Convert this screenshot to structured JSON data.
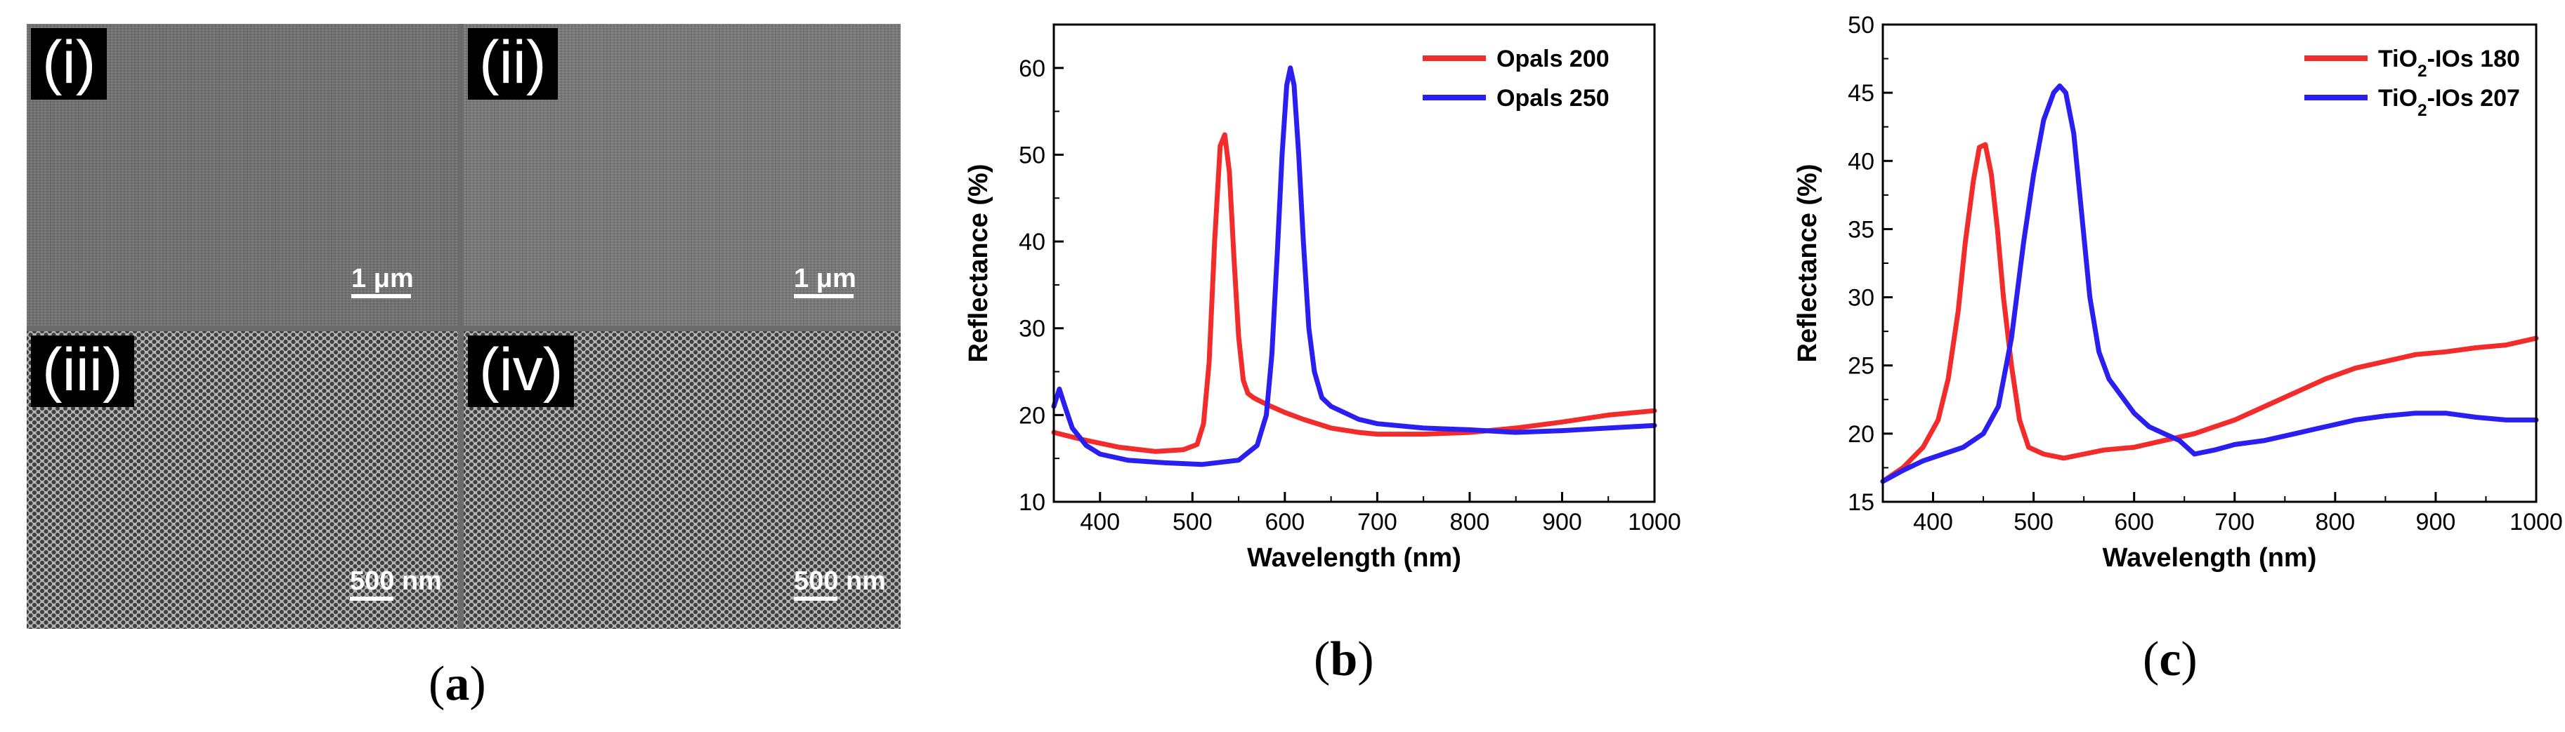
{
  "panel_a": {
    "caption_letter": "a",
    "images": [
      {
        "tag": "(i)",
        "scale_label": "1 μm",
        "texture": "smooth"
      },
      {
        "tag": "(ii)",
        "scale_label": "1 μm",
        "texture": "smooth"
      },
      {
        "tag": "(iii)",
        "scale_label": "500 nm",
        "texture": "porous"
      },
      {
        "tag": "(iv)",
        "scale_label": "500 nm",
        "texture": "porous"
      }
    ]
  },
  "panel_b": {
    "caption_letter": "b"
  },
  "panel_c": {
    "caption_letter": "c"
  },
  "colors": {
    "red": "#f22b2b",
    "blue": "#2a1ff0"
  },
  "chart_data": [
    {
      "id": "b",
      "type": "line",
      "title": "",
      "xlabel": "Wavelength (nm)",
      "ylabel": "Reflectance (%)",
      "xlim": [
        350,
        1000
      ],
      "ylim": [
        10,
        65
      ],
      "xticks": [
        400,
        500,
        600,
        700,
        800,
        900,
        1000
      ],
      "yticks": [
        10,
        20,
        30,
        40,
        50,
        60
      ],
      "legend_position": "top-right",
      "series": [
        {
          "name": "Opals 200",
          "color": "#f22b2b",
          "x": [
            350,
            380,
            420,
            460,
            490,
            505,
            512,
            518,
            524,
            530,
            535,
            540,
            545,
            550,
            555,
            560,
            566,
            575,
            585,
            600,
            620,
            650,
            680,
            700,
            750,
            800,
            850,
            900,
            950,
            1000
          ],
          "y": [
            18,
            17.2,
            16.3,
            15.8,
            16,
            16.6,
            19,
            26,
            40,
            51,
            52.3,
            48,
            38,
            29,
            24,
            22.5,
            22,
            21.5,
            21,
            20.3,
            19.5,
            18.5,
            18,
            17.8,
            17.8,
            18,
            18.5,
            19.2,
            20,
            20.5
          ]
        },
        {
          "name": "Opals 250",
          "color": "#2a1ff0",
          "x": [
            350,
            356,
            362,
            370,
            385,
            400,
            430,
            470,
            510,
            550,
            570,
            580,
            586,
            592,
            597,
            602,
            606,
            610,
            615,
            620,
            626,
            632,
            640,
            650,
            660,
            680,
            700,
            750,
            800,
            850,
            900,
            950,
            1000
          ],
          "y": [
            21,
            23,
            21,
            18.5,
            16.5,
            15.5,
            14.8,
            14.5,
            14.3,
            14.8,
            16.5,
            20,
            27,
            39,
            50,
            58,
            60,
            58,
            50,
            40,
            30,
            25,
            22,
            21,
            20.5,
            19.5,
            19,
            18.5,
            18.3,
            18,
            18.2,
            18.5,
            18.8
          ]
        }
      ]
    },
    {
      "id": "c",
      "type": "line",
      "title": "",
      "xlabel": "Wavelength (nm)",
      "ylabel": "Reflectance (%)",
      "xlim": [
        350,
        1000
      ],
      "ylim": [
        15,
        50
      ],
      "xticks": [
        400,
        500,
        600,
        700,
        800,
        900,
        1000
      ],
      "yticks": [
        15,
        20,
        25,
        30,
        35,
        40,
        45,
        50
      ],
      "legend_position": "top-right",
      "series": [
        {
          "name": "TiO2-IOs 180",
          "color": "#f22b2b",
          "x": [
            350,
            370,
            390,
            405,
            415,
            425,
            432,
            440,
            446,
            452,
            458,
            464,
            470,
            478,
            486,
            495,
            510,
            530,
            550,
            570,
            600,
            630,
            660,
            680,
            700,
            730,
            760,
            790,
            820,
            850,
            880,
            910,
            940,
            970,
            1000
          ],
          "y": [
            16.5,
            17.5,
            19,
            21,
            24,
            29,
            34,
            38.5,
            41,
            41.2,
            39,
            35,
            30,
            25,
            21,
            19,
            18.5,
            18.2,
            18.5,
            18.8,
            19,
            19.5,
            20,
            20.5,
            21,
            22,
            23,
            24,
            24.8,
            25.3,
            25.8,
            26,
            26.3,
            26.5,
            27
          ]
        },
        {
          "name": "TiO2-IOs 207",
          "color": "#2a1ff0",
          "x": [
            350,
            370,
            390,
            410,
            430,
            450,
            465,
            478,
            490,
            500,
            510,
            520,
            526,
            532,
            540,
            548,
            556,
            565,
            575,
            585,
            600,
            615,
            630,
            645,
            660,
            680,
            700,
            730,
            760,
            790,
            820,
            850,
            880,
            910,
            940,
            970,
            1000
          ],
          "y": [
            16.5,
            17.3,
            18,
            18.5,
            19,
            20,
            22,
            27,
            34,
            39,
            43,
            45,
            45.5,
            45,
            42,
            36,
            30,
            26,
            24,
            23,
            21.5,
            20.5,
            20,
            19.5,
            18.5,
            18.8,
            19.2,
            19.5,
            20,
            20.5,
            21,
            21.3,
            21.5,
            21.5,
            21.2,
            21,
            21
          ]
        }
      ]
    }
  ]
}
